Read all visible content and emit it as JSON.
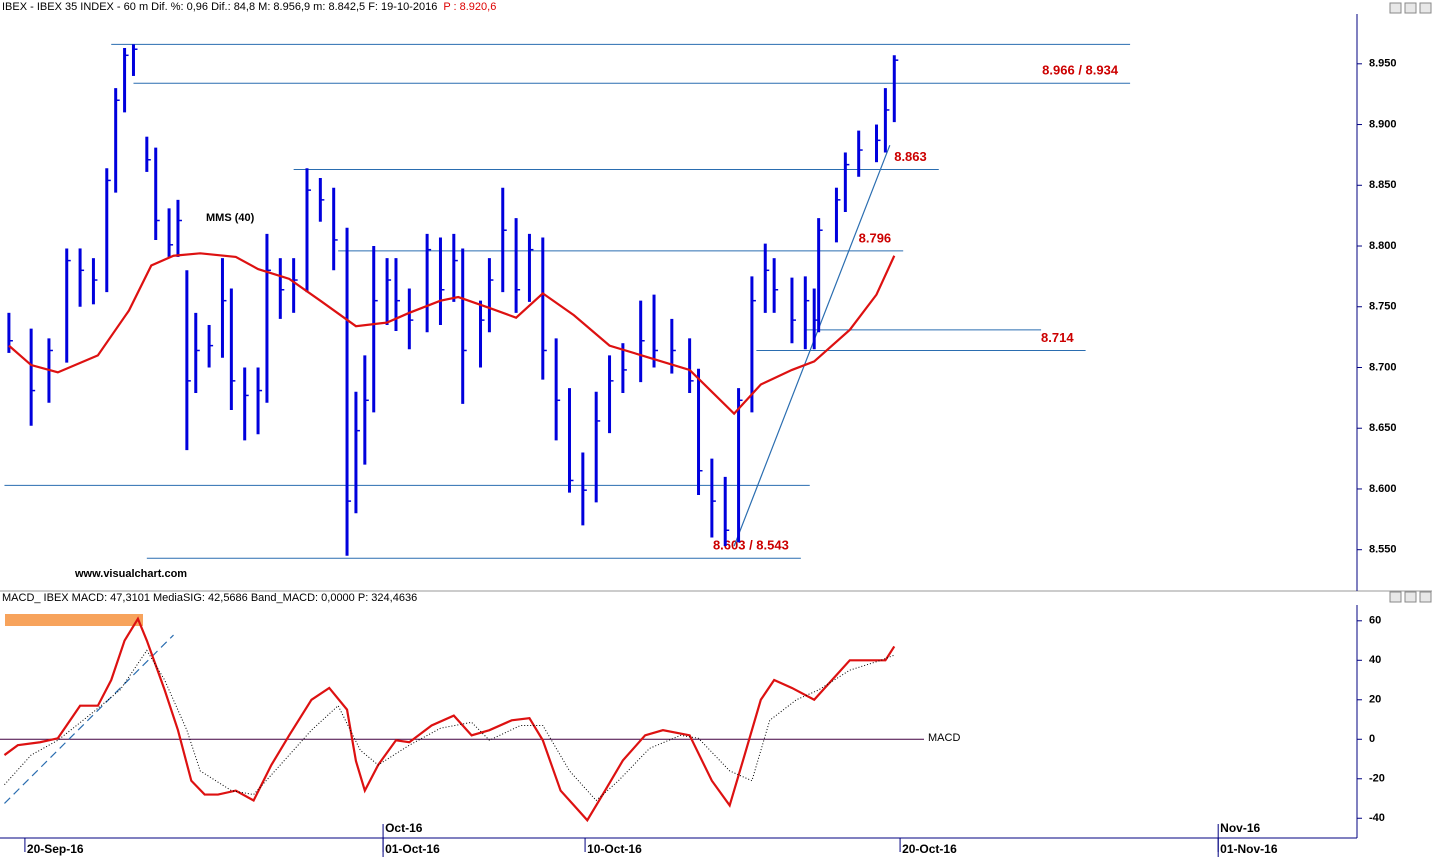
{
  "chart_data": [
    {
      "type": "ohlc",
      "title": "IBEX - IBEX 35 INDEX -  60 m  Dif. %: 0,96  Dif.: 84,8  M: 8.956,9  m: 8.842,5  F: 19-10-2016",
      "title_price": "P : 8.920,6",
      "watermark": "www.visualchart.com",
      "color": "#0000dd",
      "x": [
        2,
        7,
        11,
        15,
        18,
        21,
        24,
        26,
        28,
        30,
        33,
        35,
        38,
        40,
        42,
        44,
        47,
        50,
        52,
        55,
        58,
        60,
        63,
        66,
        69,
        72,
        75,
        78,
        80,
        82,
        84,
        87,
        89,
        92,
        96,
        99,
        102,
        104,
        108,
        110,
        113,
        116,
        119,
        122,
        125,
        128,
        131,
        134,
        137,
        140,
        144,
        147,
        151,
        155,
        157,
        160,
        163,
        166,
        169,
        172,
        174,
        178,
        181,
        183,
        184,
        188,
        190,
        193,
        197,
        199,
        201
      ],
      "high": [
        8.745,
        8.732,
        8.724,
        8.798,
        8.798,
        8.79,
        8.864,
        8.93,
        8.963,
        8.966,
        8.89,
        8.881,
        8.831,
        8.838,
        8.78,
        8.745,
        8.735,
        8.79,
        8.765,
        8.7,
        8.7,
        8.81,
        8.79,
        8.79,
        8.864,
        8.856,
        8.848,
        8.815,
        8.68,
        8.71,
        8.8,
        8.79,
        8.79,
        8.765,
        8.81,
        8.807,
        8.81,
        8.798,
        8.755,
        8.79,
        8.848,
        8.823,
        8.81,
        8.807,
        8.724,
        8.683,
        8.63,
        8.68,
        8.71,
        8.72,
        8.755,
        8.76,
        8.74,
        8.724,
        8.699,
        8.625,
        8.61,
        8.683,
        8.775,
        8.802,
        8.79,
        8.774,
        8.775,
        8.765,
        8.823,
        8.848,
        8.877,
        8.895,
        8.9,
        8.93,
        8.957
      ],
      "low": [
        8.712,
        8.652,
        8.671,
        8.704,
        8.75,
        8.752,
        8.762,
        8.844,
        8.91,
        8.94,
        8.861,
        8.805,
        8.791,
        8.791,
        8.632,
        8.679,
        8.7,
        8.708,
        8.665,
        8.64,
        8.645,
        8.671,
        8.74,
        8.745,
        8.762,
        8.82,
        8.78,
        8.545,
        8.58,
        8.62,
        8.663,
        8.735,
        8.73,
        8.715,
        8.729,
        8.735,
        8.754,
        8.67,
        8.7,
        8.729,
        8.762,
        8.745,
        8.754,
        8.69,
        8.64,
        8.597,
        8.57,
        8.589,
        8.646,
        8.679,
        8.688,
        8.7,
        8.695,
        8.679,
        8.595,
        8.56,
        8.553,
        8.556,
        8.663,
        8.745,
        8.745,
        8.72,
        8.715,
        8.715,
        8.729,
        8.803,
        8.828,
        8.857,
        8.869,
        8.877,
        8.902
      ],
      "close": [
        8.722,
        8.681,
        8.714,
        8.788,
        8.78,
        8.772,
        8.854,
        8.92,
        8.957,
        8.962,
        8.871,
        8.821,
        8.801,
        8.821,
        8.689,
        8.714,
        8.718,
        8.755,
        8.689,
        8.677,
        8.681,
        8.78,
        8.764,
        8.772,
        8.846,
        8.838,
        8.805,
        8.59,
        8.648,
        8.673,
        8.755,
        8.772,
        8.755,
        8.739,
        8.797,
        8.764,
        8.788,
        8.714,
        8.739,
        8.772,
        8.813,
        8.764,
        8.797,
        8.714,
        8.673,
        8.607,
        8.599,
        8.656,
        8.689,
        8.698,
        8.722,
        8.714,
        8.714,
        8.689,
        8.615,
        8.59,
        8.566,
        8.673,
        8.755,
        8.78,
        8.764,
        8.739,
        8.755,
        8.739,
        8.813,
        8.838,
        8.867,
        8.879,
        8.887,
        8.912,
        8.953
      ],
      "series": [
        {
          "name": "MMS (40)",
          "color": "#dd1111",
          "x": [
            2,
            7,
            13,
            22,
            29,
            34,
            39,
            45,
            53,
            58,
            65,
            72,
            80,
            87,
            92,
            99,
            103,
            110,
            116,
            122,
            129,
            137,
            146,
            155,
            160,
            165,
            171,
            178,
            183,
            191,
            197,
            201
          ],
          "values": [
            8.718,
            8.702,
            8.696,
            8.71,
            8.747,
            8.784,
            8.792,
            8.794,
            8.791,
            8.781,
            8.773,
            8.755,
            8.734,
            8.737,
            8.745,
            8.755,
            8.758,
            8.749,
            8.741,
            8.761,
            8.743,
            8.718,
            8.708,
            8.698,
            8.68,
            8.662,
            8.686,
            8.698,
            8.705,
            8.731,
            8.76,
            8.792
          ]
        }
      ],
      "levels": [
        {
          "value": 8.966,
          "from": 25,
          "to": 254
        },
        {
          "value": 8.934,
          "from": 30,
          "to": 254,
          "label": "8.966 / 8.934"
        },
        {
          "value": 8.863,
          "from": 66,
          "to": 211,
          "label": "8.863"
        },
        {
          "value": 8.796,
          "from": 76,
          "to": 203,
          "label": "8.796"
        },
        {
          "value": 8.731,
          "from": 181,
          "to": 234
        },
        {
          "value": 8.714,
          "from": 170,
          "to": 244,
          "label": "8.714"
        },
        {
          "value": 8.603,
          "from": 1,
          "to": 182
        },
        {
          "value": 8.543,
          "from": 33,
          "to": 180,
          "label": "8.603 / 8.543"
        }
      ],
      "trendlines": [
        {
          "x": [
            165,
            200
          ],
          "y": [
            8.553,
            8.883
          ]
        }
      ],
      "line_color": "#2a6db0",
      "xlim": [
        0,
        305
      ],
      "ylim": [
        8.516,
        8.991
      ],
      "yticks": [
        {
          "value": 8.55,
          "label": "8.550"
        },
        {
          "value": 8.6,
          "label": "8.600"
        },
        {
          "value": 8.65,
          "label": "8.650"
        },
        {
          "value": 8.7,
          "label": "8.700"
        },
        {
          "value": 8.75,
          "label": "8.750"
        },
        {
          "value": 8.8,
          "label": "8.800"
        },
        {
          "value": 8.85,
          "label": "8.850"
        },
        {
          "value": 8.9,
          "label": "8.900"
        },
        {
          "value": 8.95,
          "label": "8.950"
        }
      ]
    },
    {
      "type": "line",
      "title": "MACD_ IBEX MACD: 47,3101  MediaSIG: 42,5686  Band_MACD: 0,0000  P: 324,4636",
      "series": [
        {
          "name": "MACD",
          "color": "#dd1111",
          "x": [
            1,
            4,
            9,
            13,
            18,
            22,
            25,
            28,
            31,
            33,
            37,
            40,
            43,
            46,
            49,
            53,
            57,
            61,
            65,
            70,
            74,
            78,
            80,
            82,
            85,
            89,
            92,
            97,
            102,
            106,
            110,
            115,
            119,
            122,
            126,
            129,
            132,
            136,
            140,
            145,
            149,
            155,
            160,
            164,
            167,
            171,
            174,
            178,
            183,
            187,
            191,
            197,
            199,
            201
          ],
          "values": [
            -8,
            -3,
            -1.5,
            0.5,
            17,
            17,
            30,
            50,
            61,
            50,
            25,
            4.6,
            -21,
            -28,
            -28,
            -26,
            -31,
            -13,
            2,
            20,
            26,
            15,
            -11,
            -26,
            -13,
            -0.5,
            -1.5,
            7,
            12,
            2,
            4.6,
            9.6,
            10.7,
            -0.5,
            -26,
            -33.5,
            -41,
            -26,
            -10.7,
            2,
            4.6,
            2,
            -21,
            -33.5,
            -10.7,
            20,
            30,
            26,
            20,
            30,
            40,
            40,
            40,
            47
          ]
        },
        {
          "color": "#000000",
          "dotted": true,
          "x": [
            1,
            7,
            13,
            20,
            27,
            33,
            37,
            42,
            45,
            52,
            57,
            63,
            70,
            76,
            81,
            85,
            92,
            99,
            106,
            110,
            117,
            122,
            128,
            134,
            139,
            146,
            153,
            157,
            164,
            169,
            173,
            179,
            184,
            191,
            198,
            201
          ],
          "values": [
            -23,
            -8,
            -0.5,
            12,
            25,
            45,
            30,
            4.6,
            -16,
            -26,
            -28,
            -13,
            4.6,
            17,
            -5.6,
            -13,
            -3,
            5.6,
            8.6,
            -0.5,
            7,
            7,
            -16,
            -31,
            -21,
            -4.6,
            2,
            0.5,
            -16,
            -21,
            9.6,
            20,
            25,
            35,
            40,
            42.6
          ]
        }
      ],
      "hlines": [
        0
      ],
      "trendlines": [
        {
          "x": [
            1,
            39
          ],
          "y": [
            -32.5,
            52.8
          ],
          "dashed": true
        }
      ],
      "line_color": "#2a6db0",
      "xlim": [
        0,
        305
      ],
      "ylim": [
        -50,
        68
      ],
      "yticks": [
        -40,
        -20,
        0,
        20,
        40,
        60
      ],
      "xticks": [
        {
          "value": 5.6,
          "label": "20-Sep-16"
        },
        {
          "value": 86.1,
          "label": "01-Oct-16"
        },
        {
          "value": 131.5,
          "label": "10-Oct-16"
        },
        {
          "value": 202.3,
          "label": "20-Oct-16"
        },
        {
          "value": 273.8,
          "label": "01-Nov-16"
        }
      ],
      "month_ticks": [
        {
          "value": 86.1,
          "label": "Oct-16"
        },
        {
          "value": 273.8,
          "label": "Nov-16"
        }
      ]
    }
  ]
}
